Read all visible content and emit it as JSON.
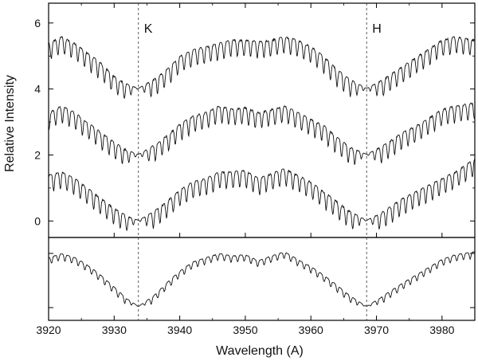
{
  "chart_data": {
    "type": "line",
    "xlabel": "Wavelength (A)",
    "ylabel": "Relative Intensity",
    "xlim": [
      3920,
      3985
    ],
    "ylim_upper": [
      -0.5,
      6.6
    ],
    "x_ticks": [
      "3920",
      "3930",
      "3940",
      "3950",
      "3960",
      "3970",
      "3980"
    ],
    "x_tick_values": [
      3920,
      3930,
      3940,
      3950,
      3960,
      3970,
      3980
    ],
    "y_ticks": [
      "0",
      "2",
      "4",
      "6"
    ],
    "y_tick_values": [
      0,
      2,
      4,
      6
    ],
    "grid": false,
    "reference_lines": [
      {
        "label": "K",
        "x": 3933.7
      },
      {
        "label": "H",
        "x": 3968.5
      }
    ],
    "series": [
      {
        "offset": 4,
        "panel": "upper",
        "x": [
          3920,
          3922,
          3924,
          3926,
          3928,
          3930,
          3932,
          3933.7,
          3936,
          3938,
          3940,
          3942,
          3944,
          3946,
          3948,
          3950,
          3952,
          3954,
          3956,
          3958,
          3960,
          3962,
          3964,
          3966,
          3968.5,
          3971,
          3974,
          3977,
          3980,
          3982,
          3985
        ],
        "y": [
          5.4,
          5.6,
          5.4,
          5.1,
          4.8,
          4.4,
          4.15,
          4.02,
          4.3,
          4.6,
          5.0,
          5.2,
          5.3,
          5.4,
          5.5,
          5.5,
          5.45,
          5.5,
          5.6,
          5.5,
          5.3,
          5.0,
          4.6,
          4.3,
          4.02,
          4.3,
          4.7,
          5.1,
          5.5,
          5.6,
          5.5
        ]
      },
      {
        "offset": 2,
        "panel": "upper",
        "x": [
          3920,
          3922,
          3924,
          3926,
          3928,
          3930,
          3932,
          3933.7,
          3936,
          3938,
          3940,
          3942,
          3944,
          3946,
          3948,
          3950,
          3952,
          3954,
          3956,
          3958,
          3960,
          3962,
          3964,
          3966,
          3968.5,
          3971,
          3974,
          3977,
          3980,
          3982,
          3985
        ],
        "y": [
          3.3,
          3.5,
          3.3,
          3.0,
          2.7,
          2.4,
          2.15,
          2.02,
          2.3,
          2.6,
          2.95,
          3.2,
          3.3,
          3.5,
          3.4,
          3.45,
          3.3,
          3.4,
          3.5,
          3.3,
          3.1,
          2.9,
          2.55,
          2.25,
          2.02,
          2.3,
          2.7,
          3.0,
          3.4,
          3.5,
          3.6
        ]
      },
      {
        "offset": 0,
        "panel": "upper",
        "x": [
          3920,
          3922,
          3924,
          3926,
          3928,
          3930,
          3932,
          3933.7,
          3936,
          3938,
          3940,
          3942,
          3944,
          3946,
          3948,
          3950,
          3952,
          3954,
          3956,
          3958,
          3960,
          3962,
          3964,
          3966,
          3968.5,
          3971,
          3974,
          3977,
          3980,
          3982,
          3985
        ],
        "y": [
          1.4,
          1.5,
          1.3,
          1.0,
          0.7,
          0.4,
          0.15,
          0.02,
          0.3,
          0.6,
          0.95,
          1.2,
          1.3,
          1.5,
          1.5,
          1.55,
          1.3,
          1.45,
          1.6,
          1.4,
          1.2,
          0.9,
          0.6,
          0.3,
          0.02,
          0.3,
          0.7,
          1.0,
          1.3,
          1.5,
          1.9
        ]
      },
      {
        "offset": 0,
        "panel": "lower",
        "x": [
          3920,
          3922,
          3924,
          3926,
          3928,
          3930,
          3932,
          3933.7,
          3936,
          3938,
          3940,
          3942,
          3944,
          3946,
          3948,
          3950,
          3952,
          3954,
          3956,
          3958,
          3960,
          3962,
          3964,
          3966,
          3968.5,
          3971,
          3974,
          3977,
          3980,
          3982,
          3985
        ],
        "y": [
          0.85,
          0.92,
          0.85,
          0.72,
          0.55,
          0.35,
          0.15,
          0.02,
          0.2,
          0.42,
          0.62,
          0.78,
          0.85,
          0.92,
          0.88,
          0.9,
          0.8,
          0.88,
          0.95,
          0.82,
          0.7,
          0.55,
          0.38,
          0.2,
          0.02,
          0.2,
          0.42,
          0.62,
          0.82,
          0.9,
          0.95
        ]
      }
    ]
  }
}
